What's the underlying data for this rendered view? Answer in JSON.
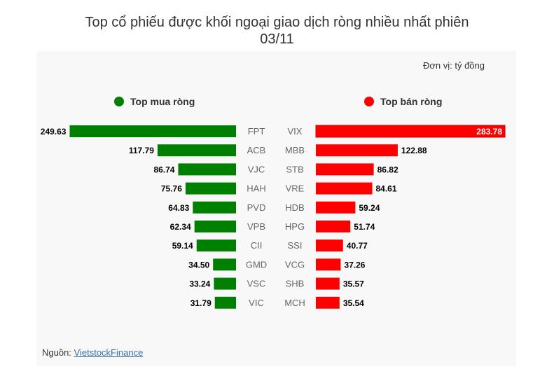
{
  "title_line1": "Top cổ phiếu được khối ngoại giao dịch ròng nhiều nhất phiên",
  "title_line2": "03/11",
  "unit": "Đơn vị: tỷ đồng",
  "source_prefix": "Nguồn: ",
  "source_link": "VietstockFinance",
  "colors": {
    "buy": "#008000",
    "sell": "#ff0000"
  },
  "chart_data": {
    "type": "bar",
    "title": "Top cổ phiếu được khối ngoại giao dịch ròng nhiều nhất phiên 03/11",
    "unit": "Đơn vị: tỷ đồng",
    "series": [
      {
        "name": "Top mua ròng",
        "categories": [
          "FPT",
          "ACB",
          "VJC",
          "HAH",
          "PVD",
          "VPB",
          "CII",
          "GMD",
          "VSC",
          "VIC"
        ],
        "values": [
          249.63,
          117.79,
          86.74,
          75.76,
          64.83,
          62.34,
          59.14,
          34.5,
          33.24,
          31.79
        ],
        "labels": [
          "249.63",
          "117.79",
          "86.74",
          "75.76",
          "64.83",
          "62.34",
          "59.14",
          "34.50",
          "33.24",
          "31.79"
        ]
      },
      {
        "name": "Top bán ròng",
        "categories": [
          "VIX",
          "MBB",
          "STB",
          "VRE",
          "HDB",
          "HPG",
          "SSI",
          "VCG",
          "SHB",
          "MCH"
        ],
        "values": [
          283.78,
          122.88,
          86.82,
          84.61,
          59.24,
          51.74,
          40.77,
          37.26,
          35.57,
          35.54
        ],
        "labels": [
          "283.78",
          "122.88",
          "86.82",
          "84.61",
          "59.24",
          "51.74",
          "40.77",
          "37.26",
          "35.57",
          "35.54"
        ]
      }
    ]
  }
}
